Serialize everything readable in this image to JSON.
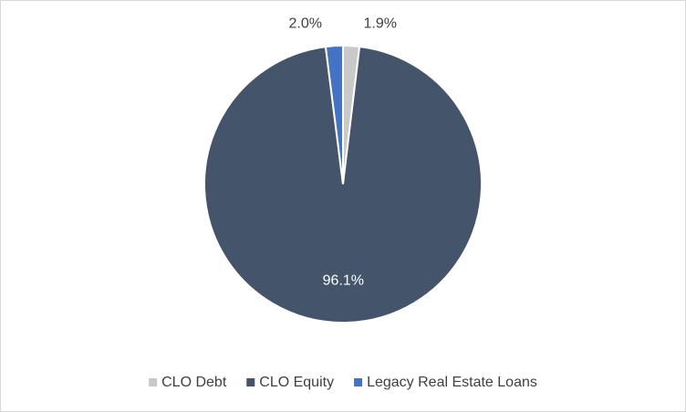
{
  "chart_data": {
    "type": "pie",
    "categories": [
      "CLO Debt",
      "CLO Equity",
      "Legacy Real Estate Loans"
    ],
    "values": [
      1.9,
      96.1,
      2.0
    ],
    "value_labels": [
      "1.9%",
      "96.1%",
      "2.0%"
    ],
    "colors": [
      "#c9c9c9",
      "#44546a",
      "#4472c4"
    ],
    "legend": "bottom"
  }
}
